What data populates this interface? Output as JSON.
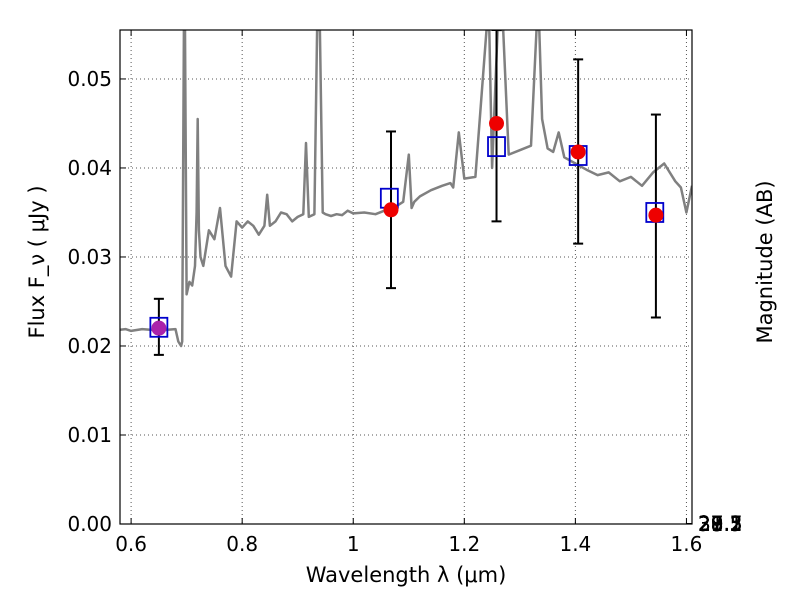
{
  "chart_data": {
    "type": "scatter",
    "xlabel": "Wavelength  λ (μm)",
    "ylabel": "Flux  F_ν  ( μJy )",
    "ylabel_right": "Magnitude (AB)",
    "xlim": [
      0.58,
      1.61
    ],
    "ylim": [
      0.0,
      0.0555
    ],
    "grid": true,
    "xticks": [
      0.6,
      0.8,
      1.0,
      1.2,
      1.4,
      1.6
    ],
    "xtick_labels": [
      "0.6",
      "0.8",
      "1",
      "1.2",
      "1.4",
      "1.6"
    ],
    "yticks": [
      0.0,
      0.01,
      0.02,
      0.03,
      0.04,
      0.05
    ],
    "ytick_labels": [
      "0.00",
      "0.01",
      "0.02",
      "0.03",
      "0.04",
      "0.05"
    ],
    "mag_ticks": [
      "27.1",
      "27.3",
      "27.5",
      "27.7",
      "28",
      "28.2",
      "28.5",
      "29",
      "29.5",
      "30",
      "31"
    ],
    "colors": {
      "template": "#808080",
      "model": "#0000cc",
      "observed": "#ee0000",
      "errorbar": "#000000",
      "grid": "#555555"
    },
    "series": [
      {
        "kind": "line",
        "x": [
          0.575,
          0.59,
          0.6,
          0.62,
          0.64,
          0.66,
          0.68,
          0.685,
          0.69,
          0.692,
          0.695,
          0.697,
          0.7,
          0.705,
          0.71,
          0.715,
          0.718,
          0.72,
          0.722,
          0.725,
          0.73,
          0.74,
          0.75,
          0.76,
          0.77,
          0.78,
          0.79,
          0.8,
          0.81,
          0.82,
          0.83,
          0.84,
          0.845,
          0.85,
          0.86,
          0.87,
          0.88,
          0.89,
          0.9,
          0.91,
          0.915,
          0.92,
          0.93,
          0.935,
          0.94,
          0.945,
          0.95,
          0.96,
          0.97,
          0.98,
          0.99,
          1.0,
          1.02,
          1.04,
          1.06,
          1.08,
          1.09,
          1.1,
          1.105,
          1.11,
          1.12,
          1.14,
          1.16,
          1.175,
          1.18,
          1.19,
          1.2,
          1.22,
          1.24,
          1.245,
          1.25,
          1.26,
          1.27,
          1.28,
          1.3,
          1.32,
          1.33,
          1.335,
          1.34,
          1.35,
          1.36,
          1.37,
          1.38,
          1.4,
          1.42,
          1.44,
          1.46,
          1.48,
          1.5,
          1.52,
          1.54,
          1.56,
          1.58,
          1.59,
          1.6,
          1.61
        ],
        "y": [
          0.0218,
          0.0219,
          0.0217,
          0.0219,
          0.0218,
          0.0218,
          0.0219,
          0.0205,
          0.02,
          0.0205,
          0.0555,
          0.0555,
          0.0258,
          0.0272,
          0.0268,
          0.029,
          0.035,
          0.0455,
          0.033,
          0.03,
          0.029,
          0.033,
          0.032,
          0.0355,
          0.029,
          0.0278,
          0.034,
          0.0333,
          0.034,
          0.0335,
          0.0325,
          0.0335,
          0.037,
          0.0335,
          0.034,
          0.035,
          0.0348,
          0.034,
          0.0345,
          0.0348,
          0.0428,
          0.0345,
          0.0348,
          0.0555,
          0.0555,
          0.035,
          0.0348,
          0.0346,
          0.0348,
          0.0347,
          0.0352,
          0.0349,
          0.035,
          0.0348,
          0.0353,
          0.0358,
          0.0362,
          0.0415,
          0.0355,
          0.0362,
          0.0368,
          0.0375,
          0.038,
          0.0383,
          0.0378,
          0.044,
          0.0388,
          0.039,
          0.0555,
          0.0555,
          0.04,
          0.0555,
          0.0555,
          0.0415,
          0.042,
          0.0425,
          0.0555,
          0.0555,
          0.0455,
          0.0422,
          0.0418,
          0.044,
          0.0412,
          0.0405,
          0.0398,
          0.0392,
          0.0395,
          0.0385,
          0.039,
          0.038,
          0.0395,
          0.0405,
          0.0385,
          0.0378,
          0.035,
          0.038
        ]
      },
      {
        "kind": "model-squares",
        "x": [
          0.65,
          1.065,
          1.258,
          1.405,
          1.543
        ],
        "y": [
          0.0221,
          0.0366,
          0.0424,
          0.0414,
          0.035
        ]
      },
      {
        "kind": "observed-points",
        "x": [
          0.65,
          1.068,
          1.258,
          1.405,
          1.545
        ],
        "y": [
          0.022,
          0.0353,
          0.045,
          0.0418,
          0.0347
        ],
        "yerr_low": [
          0.019,
          0.0265,
          0.034,
          0.0315,
          0.0232
        ],
        "yerr_high": [
          0.0253,
          0.0441,
          0.0555,
          0.0522,
          0.046
        ]
      }
    ]
  }
}
